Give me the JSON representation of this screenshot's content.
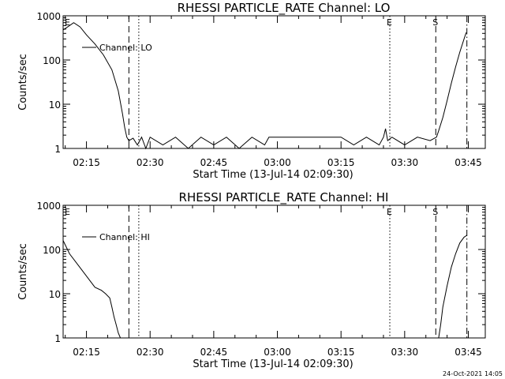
{
  "chart_data": [
    {
      "type": "line",
      "title": "RHESSI PARTICLE_RATE Channel: LO",
      "xlabel": "Start Time (13-Jul-14 02:09:30)",
      "ylabel": "Counts/sec",
      "yscale": "log",
      "ylim": [
        1,
        1000
      ],
      "xlim": [
        "02:09:30",
        "03:49:00"
      ],
      "y_ticks": [
        "1",
        "10",
        "100",
        "1000"
      ],
      "x_ticks": [
        "02:15",
        "02:30",
        "02:45",
        "03:00",
        "03:15",
        "03:30",
        "03:45"
      ],
      "legend": {
        "label": "Channel: LO",
        "placement": "top-left"
      },
      "markers": [
        {
          "label": "E",
          "time": "02:09:30",
          "style": "none"
        },
        {
          "label": "",
          "time": "02:25:00",
          "style": "dashed"
        },
        {
          "label": "",
          "time": "02:27:20",
          "style": "dotted"
        },
        {
          "label": "E",
          "time": "03:26:30",
          "style": "dotted"
        },
        {
          "label": "S",
          "time": "03:37:20",
          "style": "dashed"
        },
        {
          "label": "",
          "time": "03:44:40",
          "style": "dashdot"
        }
      ],
      "series": [
        {
          "name": "Channel: LO",
          "x": [
            "02:09:30",
            "02:11:00",
            "02:12:00",
            "02:13:30",
            "02:15:00",
            "02:17:00",
            "02:19:00",
            "02:21:00",
            "02:22:30",
            "02:23:30",
            "02:24:00",
            "02:24:30",
            "02:25:00",
            "02:26:00",
            "02:27:00",
            "02:28:00",
            "02:29:00",
            "02:30:00",
            "02:33:00",
            "02:36:00",
            "02:39:00",
            "02:42:00",
            "02:45:00",
            "02:48:00",
            "02:51:00",
            "02:54:00",
            "02:57:00",
            "02:58:00",
            "03:00:00",
            "03:10:00",
            "03:15:00",
            "03:18:00",
            "03:21:00",
            "03:24:00",
            "03:25:00",
            "03:25:30",
            "03:26:00",
            "03:27:00",
            "03:30:00",
            "03:33:00",
            "03:36:00",
            "03:37:30",
            "03:38:00",
            "03:39:00",
            "03:40:00",
            "03:41:00",
            "03:42:00",
            "03:43:00",
            "03:44:00",
            "03:44:30"
          ],
          "y": [
            480,
            600,
            700,
            560,
            370,
            230,
            130,
            60,
            20,
            6,
            3,
            1.8,
            1.5,
            1.7,
            1.2,
            1.8,
            1,
            1.8,
            1.2,
            1.8,
            1,
            1.8,
            1.2,
            1.8,
            1,
            1.8,
            1.2,
            1.8,
            1.8,
            1.8,
            1.8,
            1.2,
            1.8,
            1.2,
            1.8,
            2.8,
            1.5,
            1.8,
            1.2,
            1.8,
            1.5,
            1.8,
            2.5,
            5,
            12,
            30,
            70,
            150,
            300,
            420
          ]
        }
      ]
    },
    {
      "type": "line",
      "title": "RHESSI PARTICLE_RATE Channel: HI",
      "xlabel": "Start Time (13-Jul-14 02:09:30)",
      "ylabel": "Counts/sec",
      "yscale": "log",
      "ylim": [
        1,
        1000
      ],
      "xlim": [
        "02:09:30",
        "03:49:00"
      ],
      "y_ticks": [
        "1",
        "10",
        "100",
        "1000"
      ],
      "x_ticks": [
        "02:15",
        "02:30",
        "02:45",
        "03:00",
        "03:15",
        "03:30",
        "03:45"
      ],
      "legend": {
        "label": "Channel: HI",
        "placement": "top-left"
      },
      "markers": [
        {
          "label": "E",
          "time": "02:09:30",
          "style": "none"
        },
        {
          "label": "",
          "time": "02:25:00",
          "style": "dashed"
        },
        {
          "label": "",
          "time": "02:27:20",
          "style": "dotted"
        },
        {
          "label": "E",
          "time": "03:26:30",
          "style": "dotted"
        },
        {
          "label": "S",
          "time": "03:37:20",
          "style": "dashed"
        },
        {
          "label": "",
          "time": "03:44:40",
          "style": "dashdot"
        }
      ],
      "series": [
        {
          "name": "Channel: HI",
          "x": [
            "02:09:30",
            "02:11:00",
            "02:13:00",
            "02:15:00",
            "02:17:00",
            "02:18:30",
            "02:19:30",
            "02:20:30",
            "02:21:00",
            "02:21:30",
            "02:22:00",
            "02:22:30",
            "02:23:00"
          ],
          "y": [
            160,
            80,
            45,
            25,
            14,
            12,
            10,
            8,
            5,
            3,
            2,
            1.3,
            1
          ]
        },
        {
          "name": "Channel: HI",
          "x": [
            "03:38:00",
            "03:38:30",
            "03:39:00",
            "03:40:00",
            "03:41:00",
            "03:42:00",
            "03:43:00",
            "03:44:00",
            "03:44:40"
          ],
          "y": [
            1,
            2,
            5,
            15,
            40,
            80,
            140,
            190,
            210
          ]
        }
      ]
    }
  ],
  "footer": {
    "date": "24-Oct-2021 14:05"
  }
}
